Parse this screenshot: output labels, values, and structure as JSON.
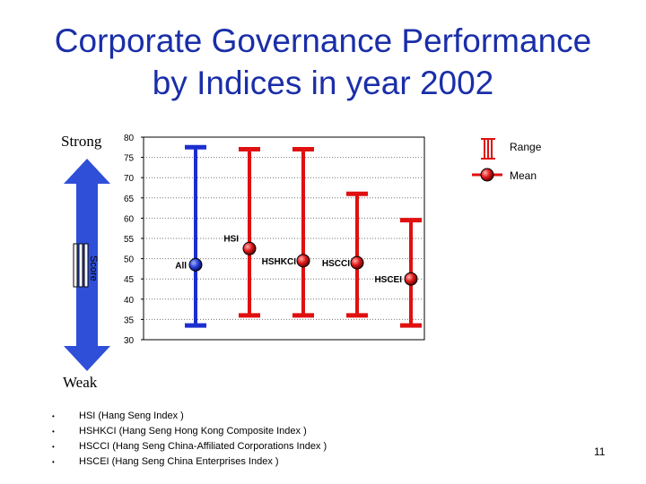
{
  "title_line1": "Corporate Governance Performance",
  "title_line2": "by Indices in year 2002",
  "strong_label": "Strong",
  "weak_label": "Weak",
  "score_label": "Score",
  "legend": {
    "range": "Range",
    "mean": "Mean"
  },
  "page_number": "11",
  "footnotes": [
    "HSI  (Hang Seng Index )",
    "HSHKCI (Hang Seng Hong Kong Composite Index )",
    "HSCCI (Hang Seng China-Affiliated Corporations Index )",
    "HSCEI (Hang Seng China Enterprises Index )"
  ],
  "colors": {
    "title": "#1a2ea8",
    "all": "#1b2fd0",
    "indices": "#e01010",
    "arrow": "#2f4fd8"
  },
  "chart_data": {
    "type": "range",
    "ylim": [
      30,
      80
    ],
    "yticks": [
      30,
      35,
      40,
      45,
      50,
      55,
      60,
      65,
      70,
      75,
      80
    ],
    "grid": true,
    "legend_position": "top-right",
    "series": [
      {
        "name": "All",
        "min": 33.5,
        "max": 77.5,
        "mean": 48.5,
        "color": "#1b2fd0"
      },
      {
        "name": "HSI",
        "min": 36,
        "max": 77,
        "mean": 52.5,
        "color": "#e01010"
      },
      {
        "name": "HSHKCI",
        "min": 36,
        "max": 77,
        "mean": 49.5,
        "color": "#e01010"
      },
      {
        "name": "HSCCI",
        "min": 36,
        "max": 66,
        "mean": 49,
        "color": "#e01010"
      },
      {
        "name": "HSCEI",
        "min": 33.5,
        "max": 59.5,
        "mean": 45,
        "color": "#e01010"
      }
    ]
  }
}
